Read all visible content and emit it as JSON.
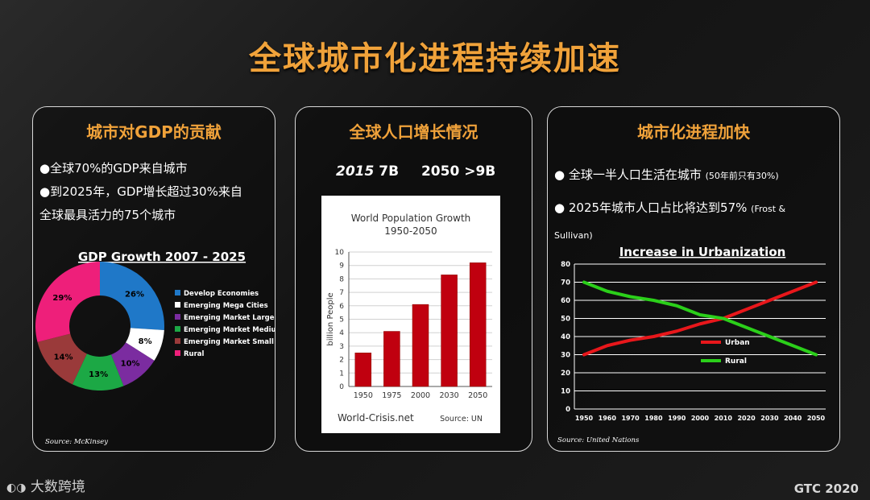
{
  "title": "全球城市化进程持续加速",
  "panel1": {
    "heading": "城市对GDP的贡献",
    "bullet1": "●全球70%的GDP来自城市",
    "bullet2_line1": "●到2025年，GDP增长超过30%来自",
    "bullet2_line2": "全球最具活力的75个城市",
    "source": "Source: McKinsey"
  },
  "panel2": {
    "heading": "全球人口增长情况",
    "stat1_year": "2015",
    "stat1_value": "7B",
    "stat2": "2050 >9B",
    "source": "Source: UN",
    "site": "World-Crisis.net"
  },
  "panel3": {
    "heading": "城市化进程加快",
    "bullet1": "● 全球一半人口生活在城市",
    "bullet1_note": "(50年前只有30%)",
    "bullet2": "● 2025年城市人口占比将达到57%",
    "bullet2_note": "(Frost &",
    "bullet2_note2": "Sullivan)",
    "source": "Source: United Nations"
  },
  "footer": {
    "logo": "大数跨境",
    "brand": "GTC 2020"
  },
  "chart_data": [
    {
      "type": "pie",
      "title": "GDP Growth 2007 - 2025",
      "categories": [
        "Develop Economies",
        "Emerging Mega Cities",
        "Emerging Market Large",
        "Emerging Market Medium",
        "Emerging Market Small",
        "Rural"
      ],
      "values": [
        26,
        8,
        10,
        13,
        14,
        29
      ],
      "labels": [
        "26%",
        "8%",
        "10%",
        "13%",
        "14%",
        "29%"
      ],
      "colors": [
        "#1f78c8",
        "#ffffff",
        "#7b2ca0",
        "#1ca845",
        "#9a3a3a",
        "#ee1f7a"
      ],
      "legend": "right"
    },
    {
      "type": "bar",
      "title": "World Population Growth",
      "subtitle": "1950-2050",
      "categories": [
        "1950",
        "1975",
        "2000",
        "2030",
        "2050"
      ],
      "values": [
        2.5,
        4.1,
        6.1,
        8.3,
        9.2
      ],
      "ylabel": "billion People",
      "ylim": [
        0,
        10
      ],
      "color": "#c0000f",
      "grid": true
    },
    {
      "type": "line",
      "title": "Increase in Urbanization",
      "x": [
        "1950",
        "1960",
        "1970",
        "1980",
        "1990",
        "2000",
        "2010",
        "2020",
        "2030",
        "2040",
        "2050"
      ],
      "series": [
        {
          "name": "Urban",
          "color": "#e8171b",
          "values": [
            30,
            35,
            38,
            40,
            43,
            47,
            50,
            55,
            60,
            65,
            70
          ]
        },
        {
          "name": "Rural",
          "color": "#2bcf1a",
          "values": [
            70,
            65,
            62,
            60,
            57,
            52,
            50,
            45,
            40,
            35,
            30
          ]
        }
      ],
      "ylim": [
        0,
        80
      ],
      "yticks": [
        0,
        10,
        20,
        30,
        40,
        50,
        60,
        70,
        80
      ],
      "grid": true
    }
  ]
}
